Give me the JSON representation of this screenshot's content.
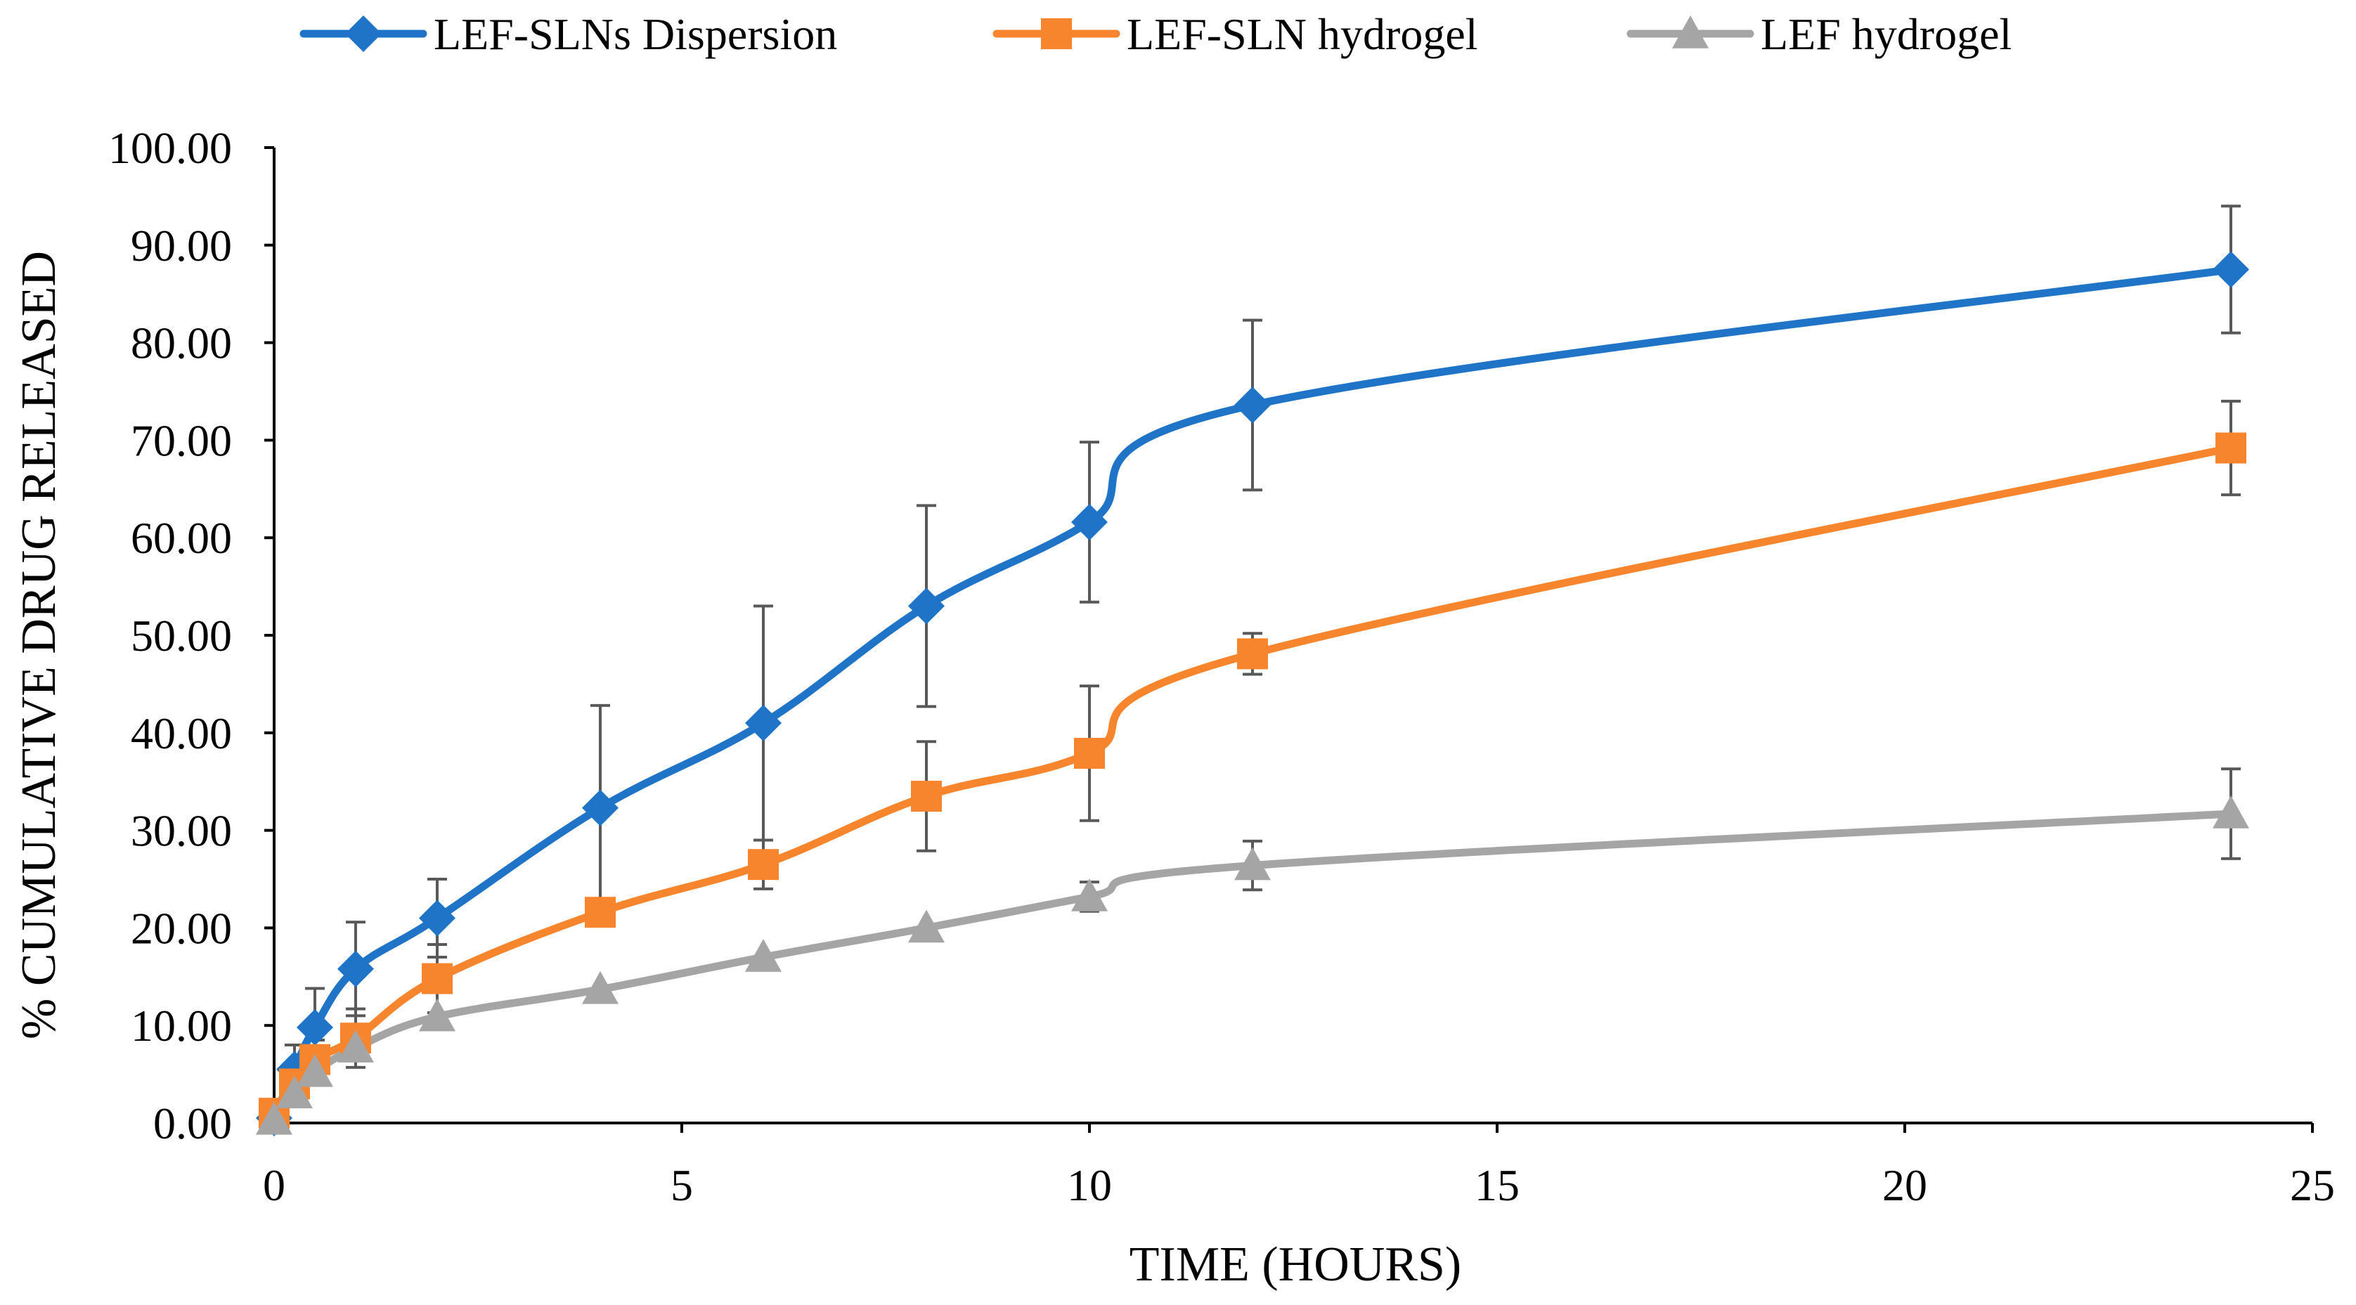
{
  "chart_data": {
    "type": "line",
    "title": "",
    "xlabel": "TIME (HOURS)",
    "ylabel": "% CUMULATIVE DRUG RELEASED",
    "xlim": [
      0,
      25
    ],
    "ylim": [
      0,
      100
    ],
    "x_ticks": [
      0,
      5,
      10,
      15,
      20,
      25
    ],
    "y_ticks": [
      "0.00",
      "10.00",
      "20.00",
      "30.00",
      "40.00",
      "50.00",
      "60.00",
      "70.00",
      "80.00",
      "90.00",
      "100.00"
    ],
    "grid": false,
    "legend_position": "top",
    "series": [
      {
        "name": "LEF-SLNs Dispersion",
        "color": "#1F74C7",
        "marker": "diamond",
        "x": [
          0,
          0.25,
          0.5,
          1,
          2,
          4,
          6,
          8,
          10,
          12,
          24
        ],
        "values": [
          0.5,
          5.5,
          9.8,
          15.8,
          21.0,
          32.3,
          41.0,
          53.0,
          61.6,
          73.6,
          87.5
        ],
        "errors": [
          0,
          2.5,
          4.0,
          4.8,
          4.0,
          10.5,
          12.0,
          10.3,
          8.2,
          8.7,
          6.5
        ]
      },
      {
        "name": "LEF-SLN hydrogel",
        "color": "#F7852D",
        "marker": "square",
        "x": [
          0,
          0.25,
          0.5,
          1,
          2,
          4,
          6,
          8,
          10,
          12,
          24
        ],
        "values": [
          1.0,
          4.0,
          6.5,
          8.7,
          14.8,
          21.6,
          26.5,
          33.5,
          37.9,
          48.1,
          69.2
        ],
        "errors": [
          0,
          1.5,
          2.0,
          3.0,
          3.5,
          0,
          2.5,
          5.6,
          6.9,
          2.1,
          4.8
        ]
      },
      {
        "name": "LEF hydrogel",
        "color": "#A5A5A5",
        "marker": "triangle",
        "x": [
          0,
          0.25,
          0.5,
          1,
          2,
          4,
          6,
          8,
          10,
          12,
          24
        ],
        "values": [
          0.3,
          3.0,
          5.2,
          7.7,
          10.9,
          13.7,
          17.0,
          20.0,
          23.2,
          26.4,
          31.7
        ],
        "errors": [
          0,
          0,
          0,
          0,
          0,
          0,
          0,
          0,
          1.5,
          2.5,
          4.6
        ]
      }
    ]
  }
}
